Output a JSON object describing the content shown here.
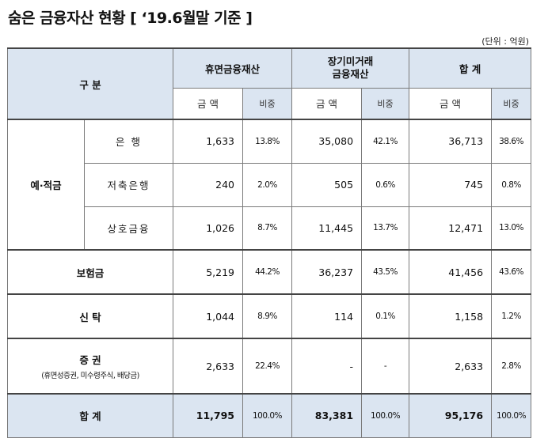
{
  "title": "숨은 금융자산 현황 [ ‘19.6월말 기준 ]",
  "unit": "(단위 : 억원)",
  "header": {
    "category": "구 분",
    "dormant": "휴면금융재산",
    "long_term": "장기미거래\n금융재산",
    "total": "합 계",
    "amount": "금 액",
    "ratio": "비중"
  },
  "rows": {
    "deposits_group": "예·적금",
    "bank": {
      "label": "은 행",
      "d_amt": "1,633",
      "d_pct": "13.8%",
      "l_amt": "35,080",
      "l_pct": "42.1%",
      "t_amt": "36,713",
      "t_pct": "38.6%"
    },
    "savings_bank": {
      "label": "저축은행",
      "d_amt": "240",
      "d_pct": "2.0%",
      "l_amt": "505",
      "l_pct": "0.6%",
      "t_amt": "745",
      "t_pct": "0.8%"
    },
    "mutual": {
      "label": "상호금융",
      "d_amt": "1,026",
      "d_pct": "8.7%",
      "l_amt": "11,445",
      "l_pct": "13.7%",
      "t_amt": "12,471",
      "t_pct": "13.0%"
    },
    "insurance": {
      "label": "보험금",
      "d_amt": "5,219",
      "d_pct": "44.2%",
      "l_amt": "36,237",
      "l_pct": "43.5%",
      "t_amt": "41,456",
      "t_pct": "43.6%"
    },
    "trust": {
      "label": "신 탁",
      "d_amt": "1,044",
      "d_pct": "8.9%",
      "l_amt": "114",
      "l_pct": "0.1%",
      "t_amt": "1,158",
      "t_pct": "1.2%"
    },
    "securities": {
      "label": "증 권",
      "note": "(휴면성증권, 미수령주식, 배당금)",
      "d_amt": "2,633",
      "d_pct": "22.4%",
      "l_amt": "-",
      "l_pct": "-",
      "t_amt": "2,633",
      "t_pct": "2.8%"
    },
    "total": {
      "label": "합 계",
      "d_amt": "11,795",
      "d_pct": "100.0%",
      "l_amt": "83,381",
      "l_pct": "100.0%",
      "t_amt": "95,176",
      "t_pct": "100.0%"
    }
  }
}
